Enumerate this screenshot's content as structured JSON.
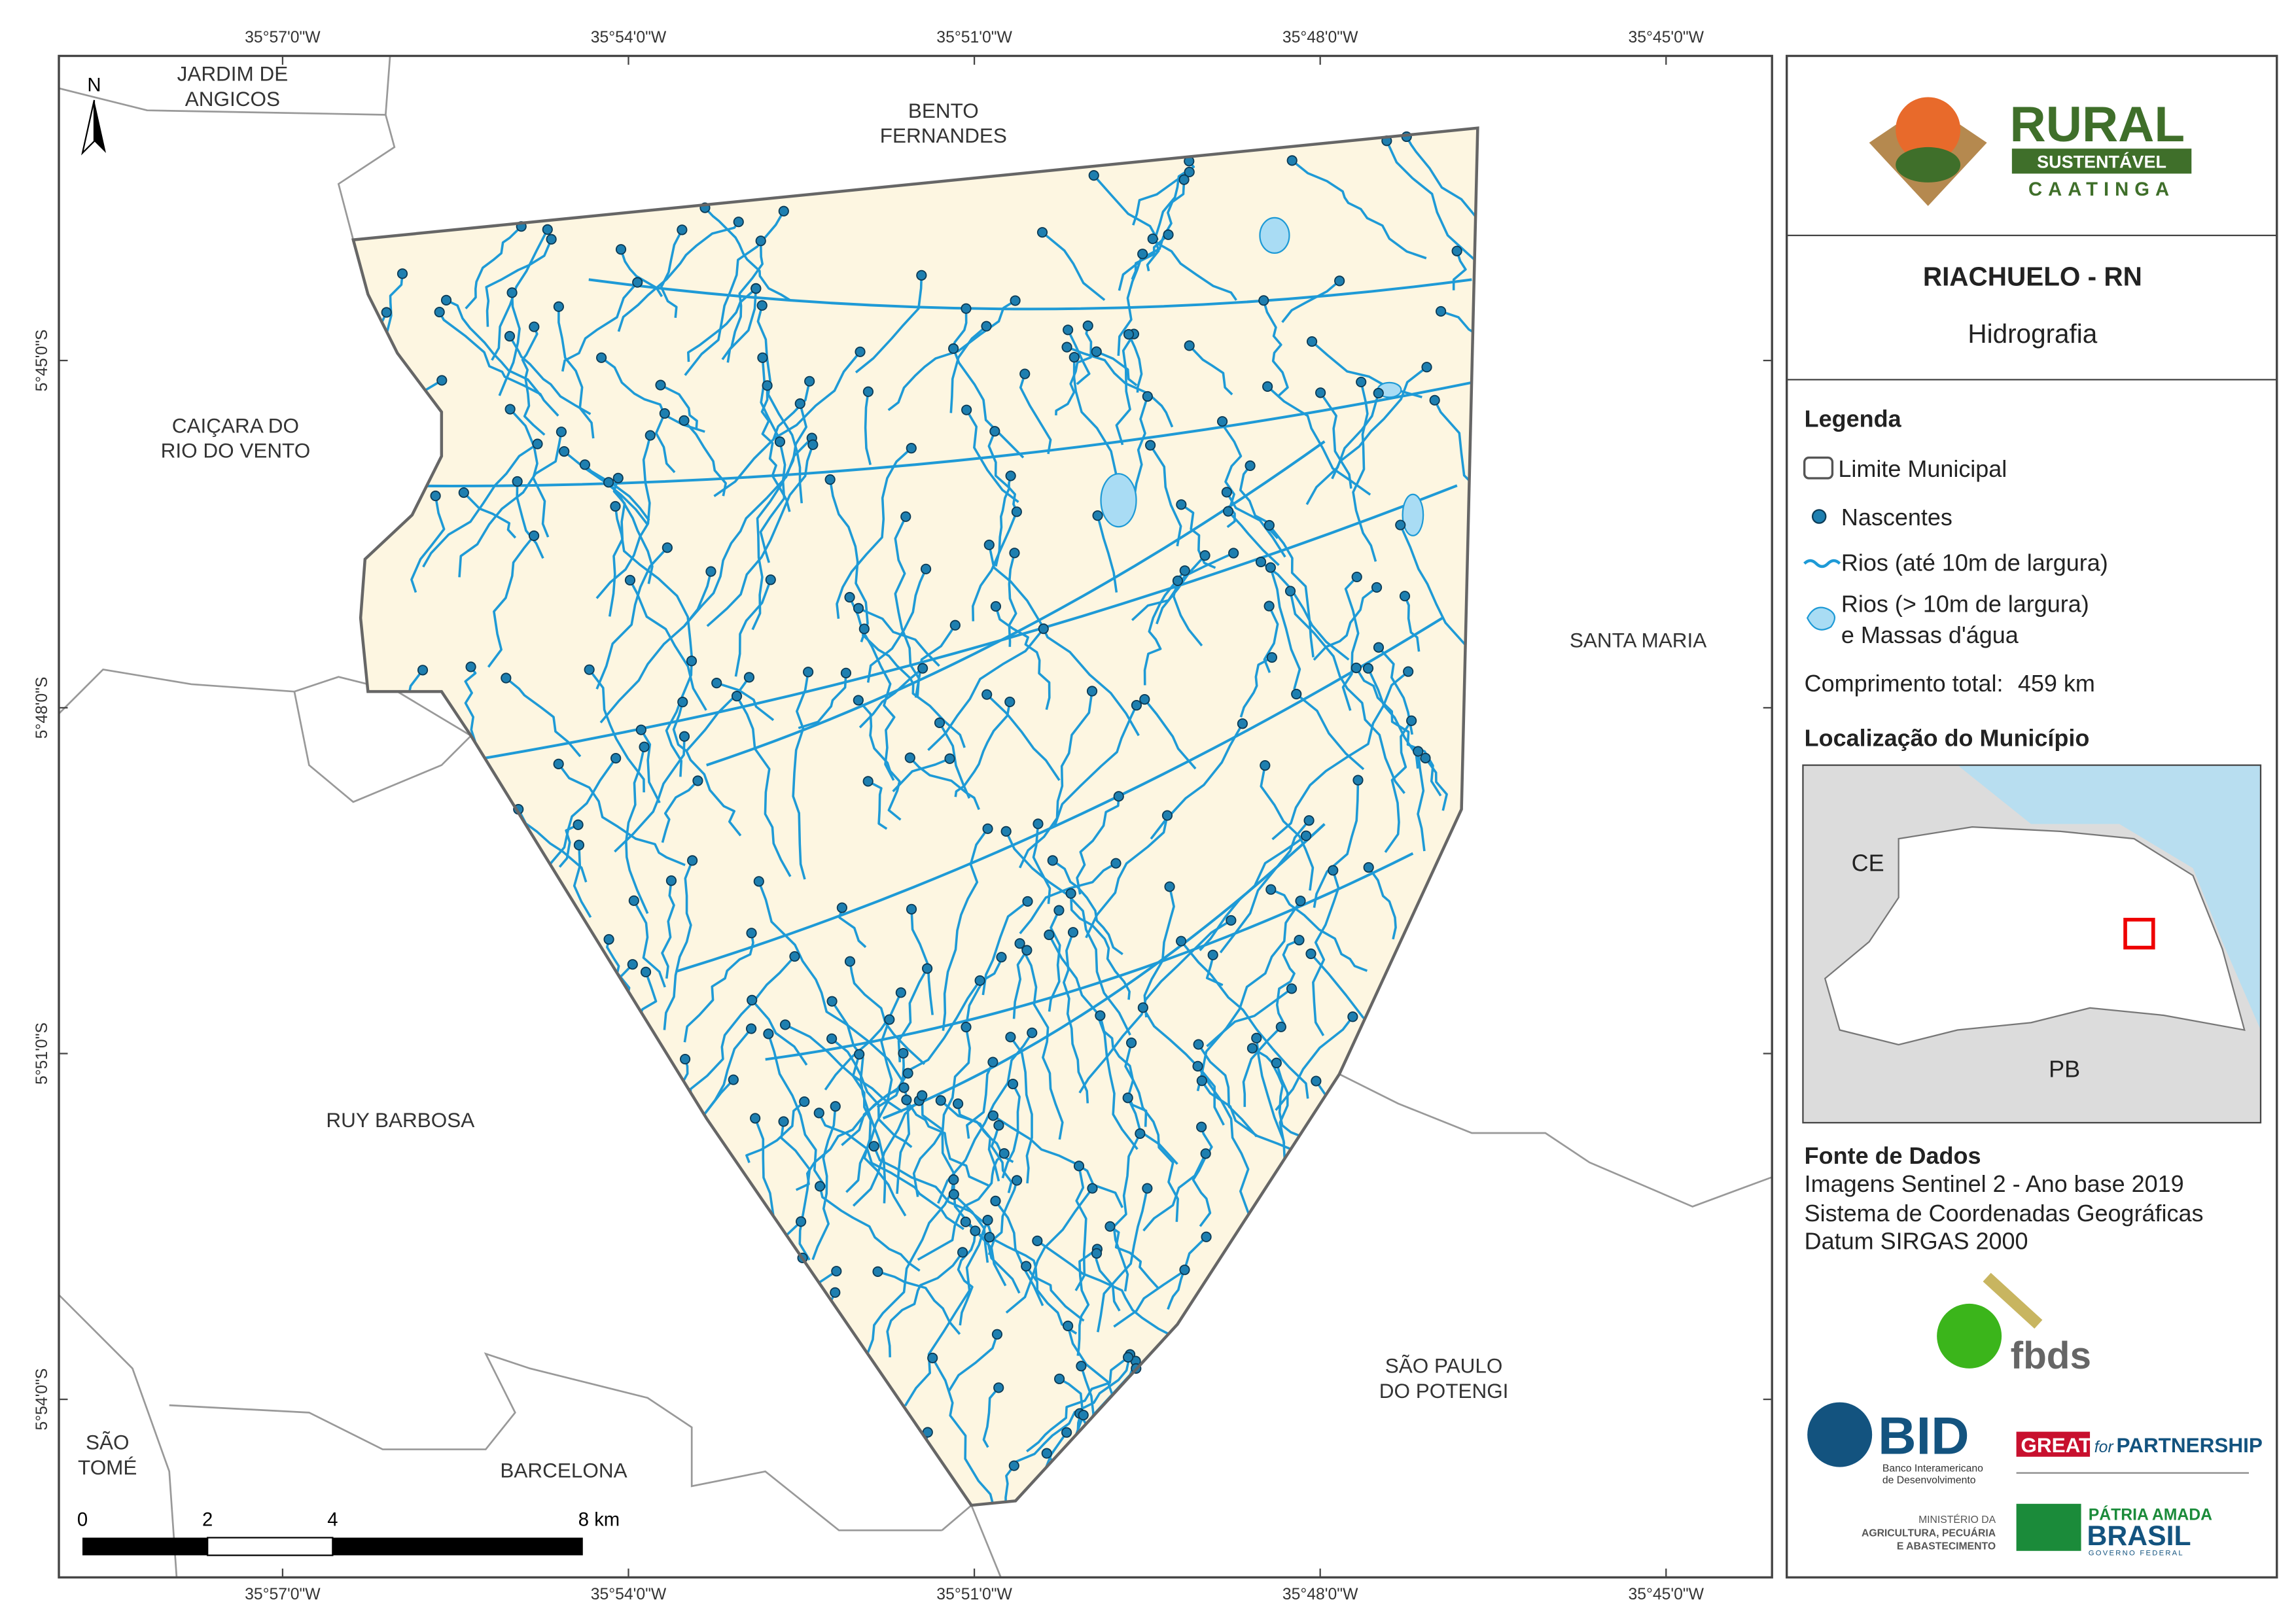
{
  "map": {
    "graticule": {
      "longitude": [
        "35°57'0\"W",
        "35°54'0\"W",
        "35°51'0\"W",
        "35°48'0\"W",
        "35°45'0\"W"
      ],
      "latitude": [
        "5°45'0\"S",
        "5°48'0\"S",
        "5°51'0\"S",
        "5°54'0\"S"
      ]
    },
    "north_arrow": "N",
    "neighbors": [
      {
        "lines": [
          "JARDIM DE",
          "ANGICOS"
        ]
      },
      {
        "lines": [
          "BENTO",
          "FERNANDES"
        ]
      },
      {
        "lines": [
          "CAIÇARA DO",
          "RIO DO VENTO"
        ]
      },
      {
        "lines": [
          "SANTA MARIA"
        ]
      },
      {
        "lines": [
          "RUY BARBOSA"
        ]
      },
      {
        "lines": [
          "SÃO PAULO",
          "DO POTENGI"
        ]
      },
      {
        "lines": [
          "SÃO",
          "TOMÉ"
        ]
      },
      {
        "lines": [
          "BARCELONA"
        ]
      }
    ],
    "scale_bar": {
      "labels": [
        "0",
        "2",
        "4",
        "8 km"
      ]
    }
  },
  "panel": {
    "logo": {
      "name": "RURAL",
      "band": "SUSTENTÁVEL",
      "region": "CAATINGA"
    },
    "title": "RIACHUELO - RN",
    "subtitle": "Hidrografia",
    "legend": {
      "title": "Legenda",
      "items": [
        "Limite Municipal",
        "Nascentes",
        "Rios (até 10m de largura)",
        "Rios (> 10m de largura)",
        "e Massas d'água"
      ]
    },
    "total_length": {
      "label": "Comprimento total:",
      "value": "459 km"
    },
    "location": {
      "title": "Localização do Município",
      "labels": [
        "CE",
        "PB"
      ]
    },
    "sources": {
      "title": "Fonte de Dados",
      "lines": [
        "Imagens Sentinel 2 - Ano base 2019",
        "Sistema de Coordenadas Geográficas",
        "Datum SIRGAS 2000"
      ]
    },
    "partners": {
      "fbds": "fbds",
      "bid": "BID",
      "bid_sub": [
        "Banco Interamericano",
        "de Desenvolvimento"
      ],
      "great": "GREAT",
      "great_for": "for",
      "great_partnership": "PARTNERSHIP",
      "ministry": [
        "MINISTÉRIO DA",
        "AGRICULTURA, PECUÁRIA",
        "E ABASTECIMENTO"
      ],
      "brasil": [
        "PÁTRIA AMADA",
        "BRASIL",
        "GOVERNO FEDERAL"
      ]
    }
  }
}
